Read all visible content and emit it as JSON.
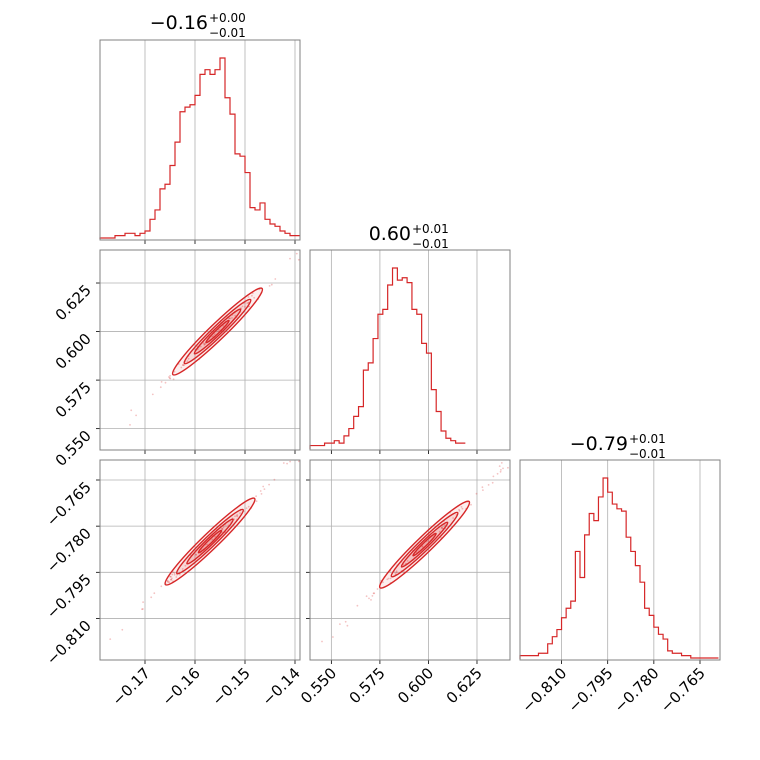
{
  "chart_data": {
    "type": "corner",
    "color": "#d62728",
    "grid": true,
    "parameters": [
      {
        "title": {
          "value": "−0.16",
          "plus": "+0.00",
          "minus": "−0.01"
        },
        "range": [
          -0.179,
          -0.139
        ],
        "ticks": [
          -0.17,
          -0.16,
          -0.15,
          -0.14
        ],
        "tick_labels": [
          "−0.17",
          "−0.16",
          "−0.15",
          "−0.14"
        ],
        "hist": {
          "bin_edges_start": -0.179,
          "bin_width": 0.001,
          "counts": [
            0,
            0,
            0,
            1,
            1,
            2,
            2,
            1,
            2,
            3,
            8,
            12,
            21,
            23,
            31,
            41,
            54,
            56,
            57,
            61,
            70,
            72,
            70,
            72,
            77,
            60,
            53,
            36,
            35,
            28,
            13,
            12,
            15,
            8,
            6,
            5,
            3,
            2,
            1,
            1
          ]
        }
      },
      {
        "title": {
          "value": "0.60",
          "plus": "+0.01",
          "minus": "−0.01"
        },
        "range": [
          0.539,
          0.642
        ],
        "ticks": [
          0.55,
          0.575,
          0.6,
          0.625
        ],
        "tick_labels": [
          "0.550",
          "0.575",
          "0.600",
          "0.625"
        ],
        "hist": {
          "bin_edges_start": 0.539,
          "bin_width": 0.0025,
          "counts": [
            1,
            1,
            1,
            2,
            2,
            3,
            2,
            5,
            8,
            13,
            17,
            32,
            35,
            45,
            55,
            57,
            67,
            74,
            69,
            70,
            68,
            57,
            55,
            43,
            39,
            24,
            15,
            7,
            4,
            3,
            2,
            2
          ]
        }
      },
      {
        "title": {
          "value": "−0.79",
          "plus": "+0.01",
          "minus": "−0.01"
        },
        "range": [
          -0.8235,
          -0.7585
        ],
        "ticks": [
          -0.81,
          -0.795,
          -0.78,
          -0.765
        ],
        "tick_labels": [
          "−0.810",
          "−0.795",
          "−0.780",
          "−0.765"
        ],
        "hist": {
          "bin_edges_start": -0.8235,
          "bin_width": 0.0015,
          "counts": [
            1,
            1,
            1,
            1,
            2,
            2,
            6,
            9,
            12,
            17,
            21,
            24,
            45,
            34,
            52,
            61,
            58,
            68,
            76,
            70,
            65,
            63,
            62,
            51,
            45,
            39,
            32,
            21,
            18,
            13,
            10,
            8,
            3,
            2,
            2,
            1,
            1,
            0,
            0,
            0,
            0,
            0,
            0
          ]
        }
      }
    ],
    "pairs": [
      {
        "x_param": 0,
        "y_param": 1,
        "relation": "strong positive correlation",
        "contour_centers": [
          [
            -0.1555,
            0.6
          ]
        ]
      },
      {
        "x_param": 0,
        "y_param": 2,
        "relation": "strong positive correlation",
        "contour_centers": [
          [
            -0.157,
            -0.785
          ]
        ]
      },
      {
        "x_param": 1,
        "y_param": 2,
        "relation": "strong positive correlation",
        "contour_centers": [
          [
            0.598,
            -0.786
          ]
        ]
      }
    ]
  }
}
